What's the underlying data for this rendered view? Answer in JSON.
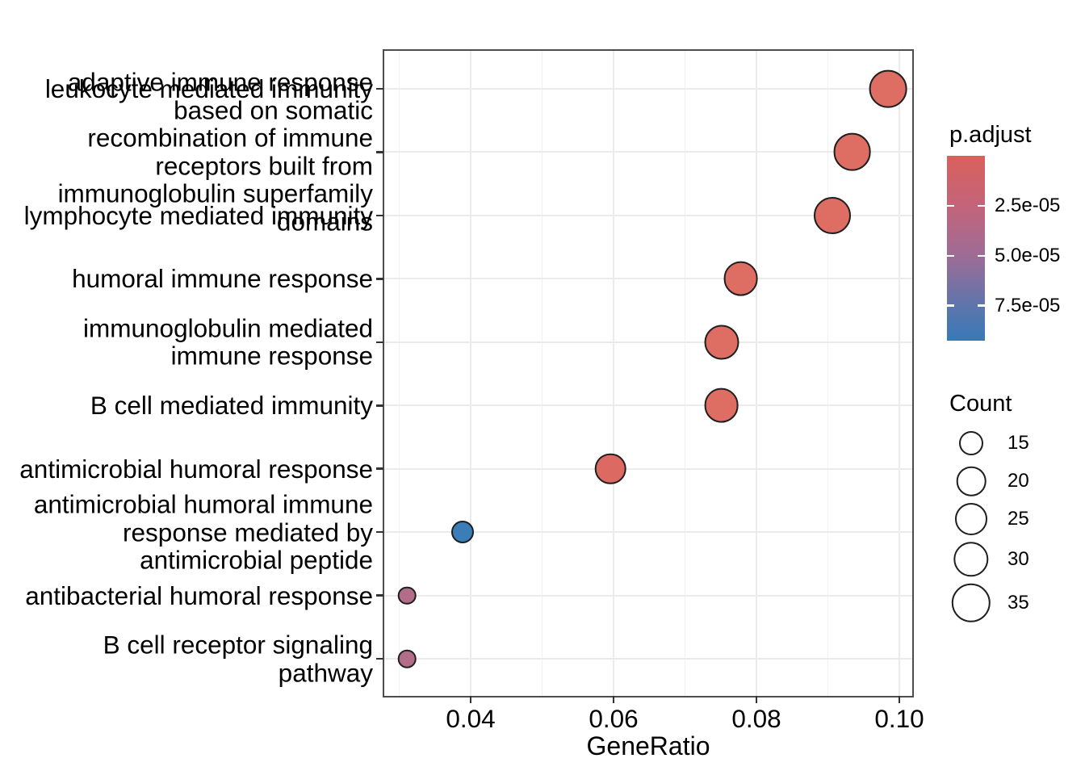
{
  "chart_data": {
    "type": "scatter",
    "subtype": "enrichment-dotplot",
    "title": "",
    "xlabel": "GeneRatio",
    "ylabel": "",
    "xlim": [
      0.0279,
      0.1018
    ],
    "grid": true,
    "legend_position": "right",
    "x_ticks": {
      "values": [
        0.04,
        0.06,
        0.08,
        0.1
      ],
      "labels": [
        "0.04",
        "0.06",
        "0.08",
        "0.10"
      ]
    },
    "x_minor_ticks": [
      0.03,
      0.05,
      0.07,
      0.09
    ],
    "categories": [
      {
        "label": "leukocyte mediated immunity",
        "lines": [
          "leukocyte mediated immunity"
        ]
      },
      {
        "label": "adaptive immune response based on somatic recombination of immune receptors built from immunoglobulin superfamily domains",
        "lines": [
          "adaptive immune response",
          "based on somatic",
          "recombination of immune",
          "receptors built from",
          "immunoglobulin superfamily",
          "domains"
        ]
      },
      {
        "label": "lymphocyte mediated immunity",
        "lines": [
          "lymphocyte mediated immunity"
        ]
      },
      {
        "label": "humoral immune response",
        "lines": [
          "humoral immune response"
        ]
      },
      {
        "label": "immunoglobulin mediated immune response",
        "lines": [
          "immunoglobulin mediated",
          "immune response"
        ]
      },
      {
        "label": "B cell mediated immunity",
        "lines": [
          "B cell mediated immunity"
        ]
      },
      {
        "label": "antimicrobial humoral response",
        "lines": [
          "antimicrobial humoral response"
        ]
      },
      {
        "label": "antimicrobial humoral immune response mediated by antimicrobial peptide",
        "lines": [
          "antimicrobial humoral immune",
          "response mediated by",
          "antimicrobial peptide"
        ]
      },
      {
        "label": "antibacterial humoral response",
        "lines": [
          "antibacterial humoral response"
        ]
      },
      {
        "label": "B cell receptor signaling pathway",
        "lines": [
          "B cell receptor signaling",
          "pathway"
        ]
      }
    ],
    "points": [
      {
        "category": "leukocyte mediated immunity",
        "gene_ratio": 0.0984,
        "count": 33,
        "p_adjust_est": 5e-06,
        "color": "#DE6E64",
        "radius_px": 23.4
      },
      {
        "category": "adaptive immune response based on somatic recombination of immune receptors built from immunoglobulin superfamily domains",
        "gene_ratio": 0.0934,
        "count": 33,
        "p_adjust_est": 5e-06,
        "color": "#DE6E64",
        "radius_px": 23.4
      },
      {
        "category": "lymphocyte mediated immunity",
        "gene_ratio": 0.0906,
        "count": 32,
        "p_adjust_est": 5e-06,
        "color": "#DE6E64",
        "radius_px": 23.0
      },
      {
        "category": "humoral immune response",
        "gene_ratio": 0.0778,
        "count": 28,
        "p_adjust_est": 5e-06,
        "color": "#DE6E64",
        "radius_px": 21.4
      },
      {
        "category": "immunoglobulin mediated immune response",
        "gene_ratio": 0.0751,
        "count": 28,
        "p_adjust_est": 5e-06,
        "color": "#DE6E64",
        "radius_px": 21.5
      },
      {
        "category": "B cell mediated immunity",
        "gene_ratio": 0.0751,
        "count": 28,
        "p_adjust_est": 5e-06,
        "color": "#DE6E64",
        "radius_px": 21.4
      },
      {
        "category": "antimicrobial humoral response",
        "gene_ratio": 0.0596,
        "count": 23,
        "p_adjust_est": 8e-06,
        "color": "#DC6A62",
        "radius_px": 19.3
      },
      {
        "category": "antimicrobial humoral immune response mediated by antimicrobial peptide",
        "gene_ratio": 0.0389,
        "count": 13,
        "p_adjust_est": 9e-05,
        "color": "#3A7DB7",
        "radius_px": 14.0
      },
      {
        "category": "antibacterial humoral response",
        "gene_ratio": 0.0311,
        "count": 10,
        "p_adjust_est": 4.3e-05,
        "color": "#B26E88",
        "radius_px": 11.3
      },
      {
        "category": "B cell receptor signaling pathway",
        "gene_ratio": 0.0311,
        "count": 10,
        "p_adjust_est": 4.3e-05,
        "color": "#B26E88",
        "radius_px": 11.3
      }
    ],
    "color_legend": {
      "title": "p.adjust",
      "ticks": [
        {
          "label": "2.5e-05",
          "value": 2.5e-05
        },
        {
          "label": "5.0e-05",
          "value": 5e-05
        },
        {
          "label": "7.5e-05",
          "value": 7.5e-05
        }
      ],
      "range_max": 9.25e-05,
      "gradient_stops": [
        {
          "pos": 0.0,
          "color": "#D8615B"
        },
        {
          "pos": 0.27,
          "color": "#C4647A"
        },
        {
          "pos": 0.54,
          "color": "#9E6C96"
        },
        {
          "pos": 0.81,
          "color": "#5E75AC"
        },
        {
          "pos": 1.0,
          "color": "#3779B6"
        }
      ]
    },
    "size_legend": {
      "title": "Count",
      "entries": [
        {
          "label": "15",
          "value": 15,
          "radius_px": 15.0
        },
        {
          "label": "20",
          "value": 20,
          "radius_px": 18.3
        },
        {
          "label": "25",
          "value": 25,
          "radius_px": 20.0
        },
        {
          "label": "30",
          "value": 30,
          "radius_px": 21.7
        },
        {
          "label": "35",
          "value": 35,
          "radius_px": 24.2
        }
      ]
    },
    "style": {
      "grid_major_color": "#EBEBEB",
      "grid_minor_color": "#F1F1F1",
      "panel_border_color": "#4D4D4D",
      "tick_color": "#333333",
      "text_color": "#000000",
      "point_stroke_color": "#1F1F1F"
    }
  }
}
